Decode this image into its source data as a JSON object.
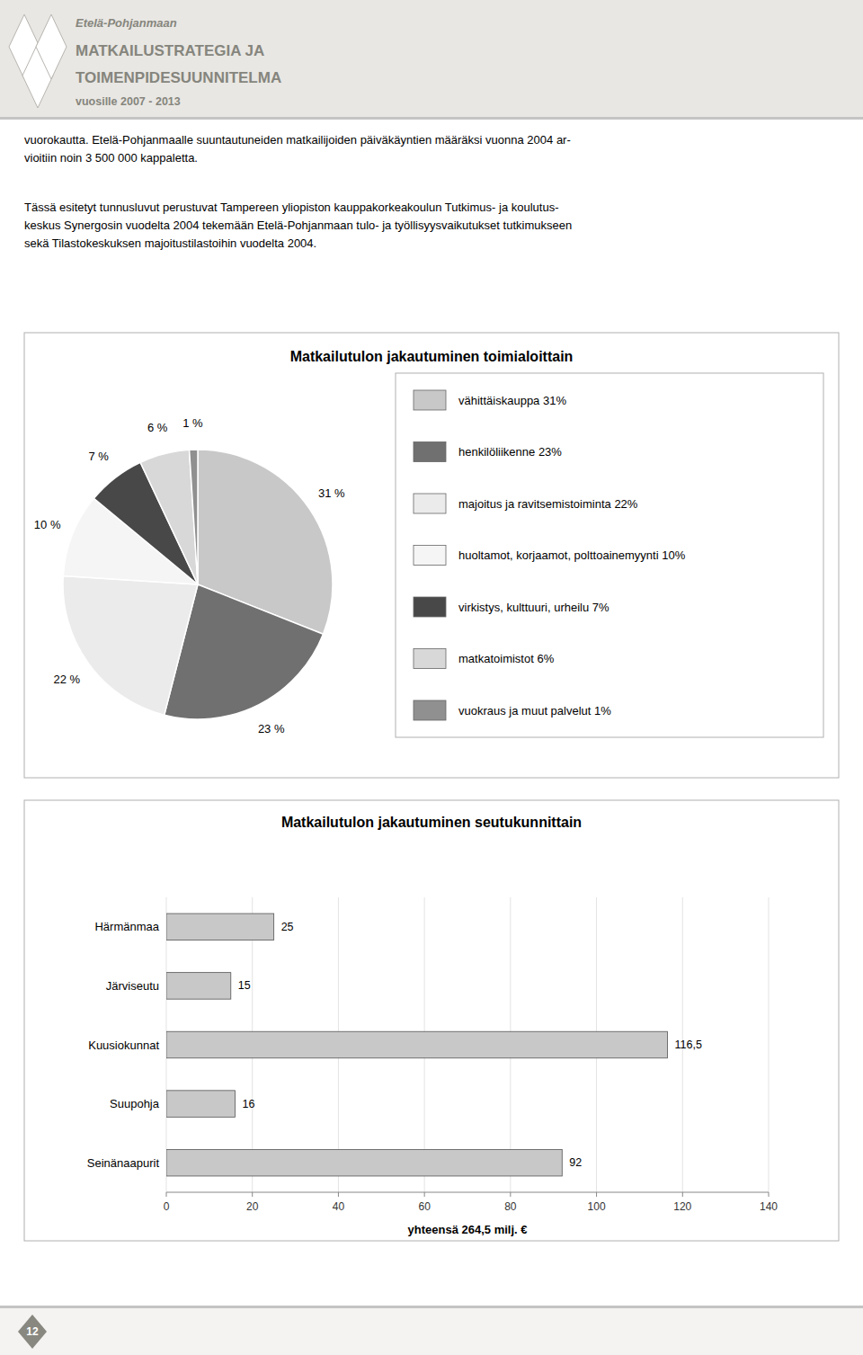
{
  "page": {
    "header_lines": [
      "Etelä-Pohjanmaan",
      "MATKAILUSTRATEGIA JA",
      "TOIMENPIDESUUNNITELMA",
      "vuosille 2007 - 2013"
    ],
    "paragraphs": [
      "vuorokautta. Etelä-Pohjanmaalle suuntautuneiden matkailijoiden päiväkäyntien määräksi vuonna 2004 ar-\nvioitiin noin 3 500 000 kappaletta.",
      "Tässä esitetyt tunnusluvut perustuvat Tampereen yliopiston kauppakorkeakoulun Tutkimus- ja koulutus-\nkeskus Synergosin vuodelta 2004 tekemään Etelä-Pohjanmaan tulo- ja työllisyysvaikutukset tutkimukseen\nsekä Tilastokeskuksen majoitustilastoihin vuodelta 2004."
    ],
    "page_number": 12
  },
  "chart_data": [
    {
      "type": "pie",
      "title": "Matkailutulon jakautuminen toimialoittain",
      "categories": [
        "vähittäiskauppa 31%",
        "henkilöliikenne 23%",
        "majoitus ja ravitsemistoiminta 22%",
        "huoltamot, korjaamot, polttoainemyynti 10%",
        "virkistys, kulttuuri, urheilu 7%",
        "matkatoimistot 6%",
        "vuokraus ja muut palvelut  1%"
      ],
      "values": [
        31,
        23,
        22,
        10,
        7,
        6,
        1
      ],
      "value_labels": [
        "31 %",
        "23 %",
        "22 %",
        "10 %",
        "7 %",
        "6 %",
        "1 %"
      ],
      "colors": [
        "#c8c8c8",
        "#707070",
        "#ebebeb",
        "#f5f5f5",
        "#484848",
        "#d8d8d8",
        "#909090"
      ],
      "data_labels": true,
      "legend": "right"
    },
    {
      "type": "bar",
      "orientation": "horizontal",
      "title": "Matkailutulon jakautuminen seutukunnittain",
      "categories": [
        "Härmänmaa",
        "Järviseutu",
        "Kuusiokunnat",
        "Suupohja",
        "Seinänaapurit"
      ],
      "values": [
        25,
        15,
        116.5,
        16,
        92
      ],
      "value_labels": [
        "25",
        "15",
        "116,5",
        "16",
        "92"
      ],
      "color": "#c8c8c8",
      "xlim": [
        0,
        140
      ],
      "xticks": [
        0,
        20,
        40,
        60,
        80,
        100,
        120,
        140
      ],
      "xlabel": "yhteensä 264,5 milj. €",
      "grid": true,
      "data_labels": true
    }
  ]
}
